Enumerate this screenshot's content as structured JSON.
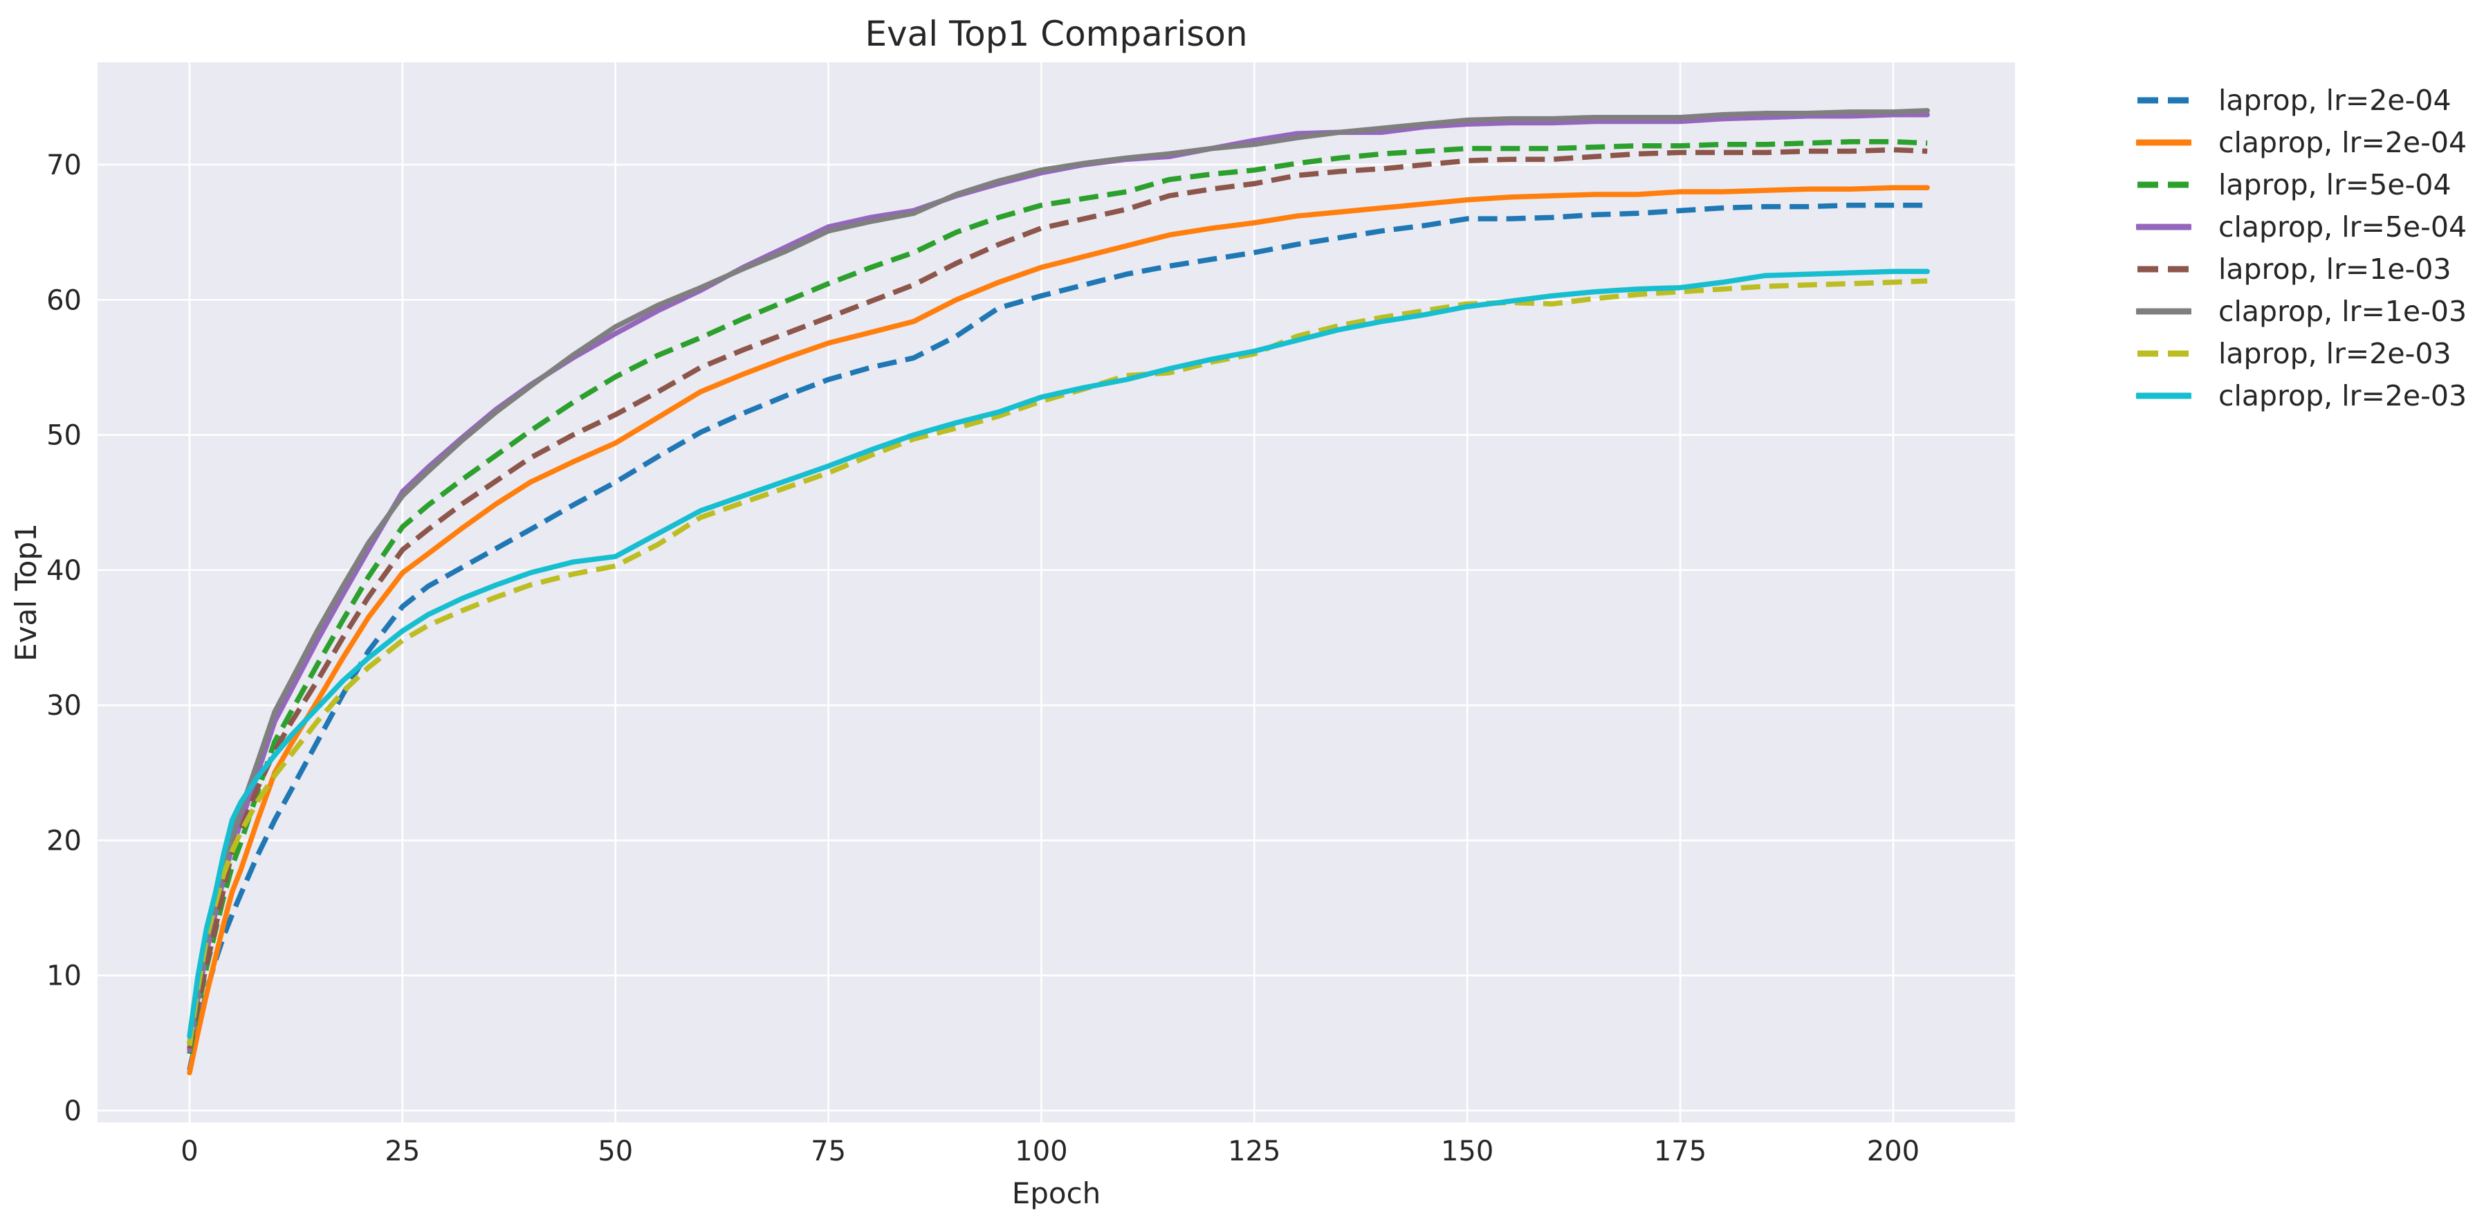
{
  "chart_data": {
    "type": "line",
    "title": "Eval Top1 Comparison",
    "xlabel": "Epoch",
    "ylabel": "Eval Top1",
    "xlim": [
      -10.8,
      214.3
    ],
    "ylim": [
      -0.87,
      77.58
    ],
    "x_ticks": [
      0,
      25,
      50,
      75,
      100,
      125,
      150,
      175,
      200
    ],
    "y_ticks": [
      0,
      10,
      20,
      30,
      40,
      50,
      60,
      70
    ],
    "grid": true,
    "legend_position": "right",
    "plot_background": "#eaeaf2",
    "grid_color": "#ffffff",
    "text_color": "#262626",
    "x": [
      0,
      1,
      2,
      3,
      4,
      5,
      6,
      8,
      10,
      12,
      15,
      18,
      21,
      25,
      28,
      32,
      36,
      40,
      45,
      50,
      55,
      60,
      65,
      70,
      75,
      80,
      85,
      90,
      95,
      100,
      105,
      110,
      115,
      120,
      125,
      130,
      135,
      140,
      145,
      150,
      155,
      160,
      165,
      170,
      175,
      180,
      185,
      190,
      195,
      200,
      204
    ],
    "series": [
      {
        "name": "laprop, lr=2e-04",
        "color": "#1f77b4",
        "style": "dashed",
        "values": [
          3.0,
          6.0,
          8.8,
          11.0,
          12.9,
          14.5,
          16.0,
          18.9,
          21.5,
          23.8,
          27.3,
          30.8,
          34.0,
          37.3,
          38.8,
          40.2,
          41.6,
          43.0,
          44.8,
          46.5,
          48.4,
          50.2,
          51.6,
          52.9,
          54.1,
          55.0,
          55.7,
          57.3,
          59.4,
          60.3,
          61.1,
          61.9,
          62.5,
          63.0,
          63.5,
          64.1,
          64.6,
          65.1,
          65.5,
          66.0,
          66.0,
          66.1,
          66.3,
          66.4,
          66.6,
          66.8,
          66.9,
          66.9,
          67.0,
          67.0,
          67.0
        ]
      },
      {
        "name": "claprop, lr=2e-04",
        "color": "#ff7f0e",
        "style": "solid",
        "values": [
          2.8,
          5.8,
          8.6,
          11.2,
          13.8,
          16.2,
          17.8,
          21.5,
          25.0,
          27.2,
          30.3,
          33.5,
          36.5,
          39.8,
          41.2,
          43.1,
          44.9,
          46.5,
          48.0,
          49.4,
          51.3,
          53.2,
          54.5,
          55.7,
          56.8,
          57.6,
          58.4,
          60.0,
          61.3,
          62.4,
          63.2,
          64.0,
          64.8,
          65.3,
          65.7,
          66.2,
          66.5,
          66.8,
          67.1,
          67.4,
          67.6,
          67.7,
          67.8,
          67.8,
          68.0,
          68.0,
          68.1,
          68.2,
          68.2,
          68.3,
          68.3
        ]
      },
      {
        "name": "laprop, lr=5e-04",
        "color": "#2ca02c",
        "style": "dashed",
        "values": [
          4.2,
          7.6,
          10.6,
          13.2,
          15.8,
          18.1,
          19.8,
          23.6,
          27.3,
          29.6,
          33.0,
          36.3,
          39.5,
          43.2,
          44.8,
          46.7,
          48.5,
          50.3,
          52.4,
          54.3,
          55.9,
          57.2,
          58.6,
          59.9,
          61.2,
          62.4,
          63.5,
          65.0,
          66.1,
          67.0,
          67.5,
          68.0,
          68.9,
          69.3,
          69.6,
          70.1,
          70.5,
          70.8,
          71.0,
          71.2,
          71.2,
          71.2,
          71.3,
          71.4,
          71.4,
          71.5,
          71.5,
          71.6,
          71.7,
          71.7,
          71.6
        ]
      },
      {
        "name": "claprop, lr=5e-04",
        "color": "#9467bd",
        "style": "solid",
        "values": [
          4.5,
          8.4,
          11.8,
          14.5,
          17.2,
          19.5,
          21.3,
          25.0,
          28.8,
          31.2,
          34.8,
          38.2,
          41.5,
          45.8,
          47.6,
          49.8,
          51.9,
          53.7,
          55.7,
          57.5,
          59.2,
          60.7,
          62.4,
          63.9,
          65.4,
          66.1,
          66.6,
          67.7,
          68.6,
          69.4,
          70.0,
          70.4,
          70.6,
          71.2,
          71.8,
          72.3,
          72.4,
          72.4,
          72.8,
          73.0,
          73.1,
          73.1,
          73.2,
          73.2,
          73.2,
          73.4,
          73.5,
          73.6,
          73.6,
          73.7,
          73.7
        ]
      },
      {
        "name": "laprop, lr=1e-03",
        "color": "#8c564b",
        "style": "dashed",
        "values": [
          4.6,
          7.8,
          10.8,
          13.4,
          16.4,
          19.2,
          20.8,
          23.9,
          26.6,
          28.8,
          31.8,
          35.0,
          38.0,
          41.5,
          43.0,
          44.9,
          46.6,
          48.3,
          50.0,
          51.5,
          53.2,
          55.0,
          56.3,
          57.5,
          58.7,
          59.9,
          61.1,
          62.7,
          64.1,
          65.3,
          66.0,
          66.7,
          67.7,
          68.2,
          68.6,
          69.2,
          69.5,
          69.7,
          70.0,
          70.3,
          70.4,
          70.4,
          70.6,
          70.8,
          70.9,
          70.9,
          70.9,
          71.0,
          71.0,
          71.1,
          71.0
        ]
      },
      {
        "name": "claprop, lr=1e-03",
        "color": "#7f7f7f",
        "style": "solid",
        "values": [
          5.0,
          9.0,
          12.5,
          15.2,
          18.0,
          20.4,
          22.2,
          25.8,
          29.5,
          31.9,
          35.5,
          38.8,
          42.0,
          45.5,
          47.3,
          49.6,
          51.7,
          53.6,
          55.9,
          58.0,
          59.6,
          60.9,
          62.3,
          63.6,
          65.1,
          65.8,
          66.4,
          67.8,
          68.8,
          69.6,
          70.1,
          70.5,
          70.8,
          71.2,
          71.5,
          72.0,
          72.4,
          72.7,
          73.0,
          73.3,
          73.4,
          73.4,
          73.5,
          73.5,
          73.5,
          73.7,
          73.8,
          73.8,
          73.9,
          73.9,
          74.0
        ]
      },
      {
        "name": "laprop, lr=2e-03",
        "color": "#bcbd22",
        "style": "dashed",
        "values": [
          4.8,
          9.2,
          12.8,
          15.2,
          17.5,
          19.2,
          20.6,
          22.9,
          24.8,
          26.4,
          28.8,
          31.0,
          32.8,
          34.8,
          35.9,
          37.0,
          38.0,
          38.9,
          39.7,
          40.3,
          41.9,
          43.9,
          45.0,
          46.1,
          47.2,
          48.5,
          49.7,
          50.5,
          51.4,
          52.5,
          53.4,
          54.4,
          54.6,
          55.4,
          56.0,
          57.3,
          58.1,
          58.7,
          59.2,
          59.7,
          59.8,
          59.7,
          60.1,
          60.4,
          60.6,
          60.8,
          61.0,
          61.1,
          61.2,
          61.3,
          61.4
        ]
      },
      {
        "name": "claprop, lr=2e-03",
        "color": "#17becf",
        "style": "solid",
        "values": [
          5.5,
          10.0,
          13.5,
          16.0,
          19.0,
          21.5,
          22.8,
          24.7,
          26.3,
          27.8,
          29.8,
          31.8,
          33.5,
          35.5,
          36.7,
          37.9,
          38.9,
          39.8,
          40.6,
          41.0,
          42.7,
          44.4,
          45.5,
          46.6,
          47.7,
          48.9,
          50.0,
          50.9,
          51.7,
          52.8,
          53.5,
          54.1,
          54.9,
          55.6,
          56.2,
          57.0,
          57.8,
          58.4,
          58.9,
          59.5,
          59.9,
          60.3,
          60.6,
          60.8,
          60.9,
          61.3,
          61.8,
          61.9,
          62.0,
          62.1,
          62.1
        ]
      }
    ]
  }
}
